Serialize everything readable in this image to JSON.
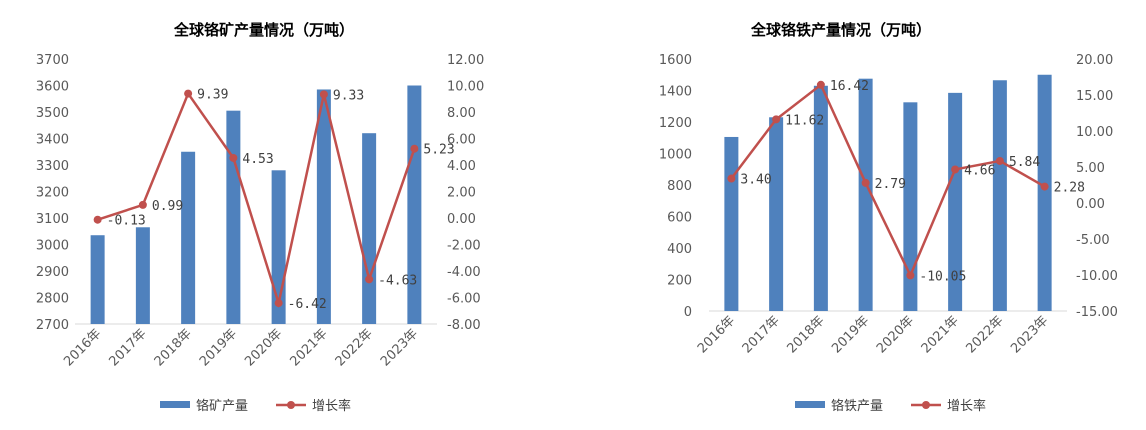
{
  "chart_data": [
    {
      "type": "bar+line",
      "title": "全球铬矿产量情况（万吨）",
      "categories": [
        "2016年",
        "2017年",
        "2018年",
        "2019年",
        "2020年",
        "2021年",
        "2022年",
        "2023年"
      ],
      "series": [
        {
          "name": "铬矿产量",
          "type": "bar",
          "axis": "left",
          "color": "#4f81bd",
          "values": [
            3035,
            3065,
            3350,
            3505,
            3280,
            3585,
            3420,
            3600
          ]
        },
        {
          "name": "增长率",
          "type": "line",
          "axis": "right",
          "color": "#c0504d",
          "values": [
            -0.13,
            0.99,
            9.39,
            4.53,
            -6.42,
            9.33,
            -4.63,
            5.23
          ],
          "labels": [
            "-0.13",
            "0.99",
            "9.39",
            "4.53",
            "-6.42",
            "9.33",
            "-4.63",
            "5.23"
          ]
        }
      ],
      "y_left": {
        "min": 2700,
        "max": 3700,
        "step": 100,
        "ticks": [
          "2700",
          "2800",
          "2900",
          "3000",
          "3100",
          "3200",
          "3300",
          "3400",
          "3500",
          "3600",
          "3700"
        ]
      },
      "y_right": {
        "min": -8,
        "max": 12,
        "step": 2,
        "ticks": [
          "-8.00",
          "-6.00",
          "-4.00",
          "-2.00",
          "0.00",
          "2.00",
          "4.00",
          "6.00",
          "8.00",
          "10.00",
          "12.00"
        ]
      },
      "legend": "bottom",
      "grid": false
    },
    {
      "type": "bar+line",
      "title": "全球铬铁产量情况（万吨）",
      "categories": [
        "2016年",
        "2017年",
        "2018年",
        "2019年",
        "2020年",
        "2021年",
        "2022年",
        "2023年"
      ],
      "series": [
        {
          "name": "铬铁产量",
          "type": "bar",
          "axis": "left",
          "color": "#4f81bd",
          "values": [
            1105,
            1230,
            1430,
            1475,
            1325,
            1385,
            1465,
            1500
          ]
        },
        {
          "name": "增长率",
          "type": "line",
          "axis": "right",
          "color": "#c0504d",
          "values": [
            3.4,
            11.62,
            16.42,
            2.79,
            -10.05,
            4.66,
            5.84,
            2.28
          ],
          "labels": [
            "3.40",
            "11.62",
            "16.42",
            "2.79",
            "-10.05",
            "4.66",
            "5.84",
            "2.28"
          ]
        }
      ],
      "y_left": {
        "min": 0,
        "max": 1600,
        "step": 200,
        "ticks": [
          "0",
          "200",
          "400",
          "600",
          "800",
          "1000",
          "1200",
          "1400",
          "1600"
        ]
      },
      "y_right": {
        "min": -15,
        "max": 20,
        "step": 5,
        "ticks": [
          "-15.00",
          "-10.00",
          "-5.00",
          "0.00",
          "5.00",
          "10.00",
          "15.00",
          "20.00"
        ]
      },
      "legend": "bottom",
      "grid": false
    }
  ]
}
